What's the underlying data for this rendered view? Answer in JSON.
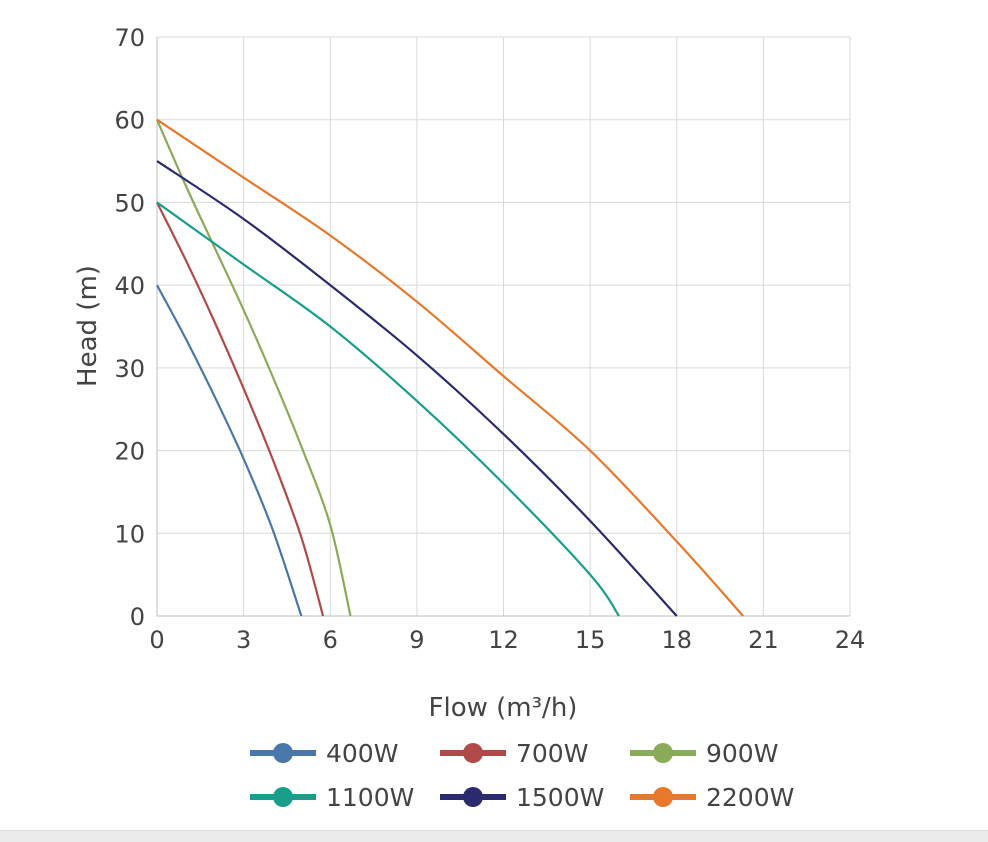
{
  "chart_data": {
    "type": "line",
    "title": "",
    "xlabel": "Flow (m³/h)",
    "ylabel": "Head (m)",
    "xlim": [
      0,
      24
    ],
    "ylim": [
      0,
      70
    ],
    "xticks": [
      "0",
      "3",
      "6",
      "9",
      "12",
      "15",
      "18",
      "21",
      "24"
    ],
    "yticks": [
      "0",
      "10",
      "20",
      "30",
      "40",
      "50",
      "60",
      "70"
    ],
    "grid": true,
    "legend_position": "bottom",
    "series": [
      {
        "name": "400W",
        "color": "#4a77aa",
        "x": [
          0,
          1,
          2,
          3,
          4,
          5
        ],
        "y": [
          40,
          33.5,
          26.5,
          19,
          10.5,
          0
        ]
      },
      {
        "name": "700W",
        "color": "#b04a48",
        "x": [
          0,
          1,
          2,
          3,
          4,
          5,
          5.75
        ],
        "y": [
          50,
          43,
          35.5,
          27.5,
          19,
          9.5,
          0
        ]
      },
      {
        "name": "900W",
        "color": "#8aab58",
        "x": [
          0,
          1,
          2,
          3,
          4,
          5,
          6,
          6.7
        ],
        "y": [
          60,
          52,
          44.5,
          37,
          29,
          20.5,
          11,
          0
        ]
      },
      {
        "name": "1100W",
        "color": "#1a9e8c",
        "x": [
          0,
          3,
          6,
          9,
          12,
          15,
          16
        ],
        "y": [
          50,
          42.5,
          35,
          26,
          16,
          5,
          0
        ]
      },
      {
        "name": "1500W",
        "color": "#2a2a6e",
        "x": [
          0,
          3,
          6,
          9,
          12,
          15,
          18
        ],
        "y": [
          55,
          48,
          40,
          31.5,
          22,
          11.5,
          0
        ]
      },
      {
        "name": "2200W",
        "color": "#e8782b",
        "x": [
          0,
          3,
          6,
          9,
          12,
          15,
          18,
          20.3
        ],
        "y": [
          60,
          53,
          46,
          38,
          29,
          20,
          9,
          0
        ]
      }
    ]
  }
}
